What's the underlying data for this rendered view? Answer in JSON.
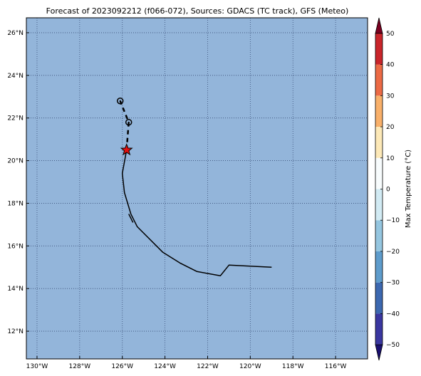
{
  "title": "Forecast of 2023092212 (f066-072), Sources: GDACS (TC track), GFS (Meteo)",
  "map": {
    "ocean_color": "#93b5da",
    "grid_color": "#3a4f78",
    "lon_range": [
      -130.5,
      -114.5
    ],
    "lat_range": [
      10.7,
      26.7
    ],
    "lon_ticks": [
      -130,
      -128,
      -126,
      -124,
      -122,
      -120,
      -118,
      -116
    ],
    "lon_tick_labels": [
      "130°W",
      "128°W",
      "126°W",
      "124°W",
      "122°W",
      "120°W",
      "118°W",
      "116°W"
    ],
    "lat_ticks": [
      12,
      14,
      16,
      18,
      20,
      22,
      24,
      26
    ],
    "lat_tick_labels": [
      "12°N",
      "14°N",
      "16°N",
      "18°N",
      "20°N",
      "22°N",
      "24°N",
      "26°N"
    ]
  },
  "track": {
    "past_path": [
      [
        -119.0,
        15.0
      ],
      [
        -121.0,
        15.1
      ],
      [
        -121.4,
        14.6
      ],
      [
        -122.5,
        14.8
      ],
      [
        -123.3,
        15.2
      ],
      [
        -124.1,
        15.7
      ],
      [
        -125.3,
        16.9
      ],
      [
        -125.6,
        17.5
      ],
      [
        -125.9,
        18.5
      ],
      [
        -126.0,
        19.4
      ],
      [
        -125.8,
        20.5
      ]
    ],
    "past_marker": [
      -125.5,
      17.1
    ],
    "current_position": [
      -125.8,
      20.5
    ],
    "forecast_path": [
      [
        -125.8,
        20.5
      ],
      [
        -125.7,
        21.8
      ],
      [
        -126.1,
        22.8
      ]
    ],
    "forecast_points": [
      [
        -125.7,
        21.8
      ],
      [
        -126.1,
        22.8
      ]
    ]
  },
  "colorbar": {
    "label": "Max Temperature (°C)",
    "range": [
      -55,
      55
    ],
    "bounds": [
      -50,
      -40,
      -30,
      -20,
      -10,
      0,
      10,
      20,
      30,
      40,
      50
    ],
    "ticks": [
      -50,
      -40,
      -30,
      -20,
      -10,
      0,
      10,
      20,
      30,
      40,
      50
    ],
    "tick_labels": [
      "−50",
      "−40",
      "−30",
      "−20",
      "−10",
      "0",
      "10",
      "20",
      "30",
      "40",
      "50"
    ],
    "colors": [
      "#3a37a0",
      "#3c68b0",
      "#5e9ccc",
      "#95c6e0",
      "#d2ebf4",
      "#f8fcfd",
      "#fde9b8",
      "#f9b06a",
      "#ec6a45",
      "#c9252b",
      "#a50026"
    ],
    "under_color": "#1a1070",
    "over_color": "#7a0020"
  }
}
